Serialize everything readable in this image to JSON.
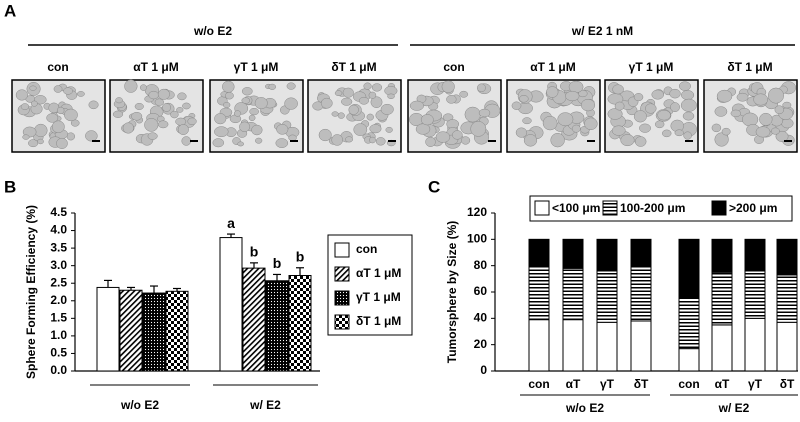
{
  "panel_a": {
    "label": "A",
    "groups": [
      {
        "label": "w/o E2",
        "images": [
          "con",
          "αT 1 μM",
          "γT 1 μM",
          "δT 1 μM"
        ]
      },
      {
        "label": "w/ E2 1 nM",
        "images": [
          "con",
          "αT 1 μM",
          "γT 1 μM",
          "δT 1 μM"
        ]
      }
    ]
  },
  "chart_data": [
    {
      "type": "bar",
      "panel_label": "B",
      "y_label": "Sphere Forming Efficiency (%)",
      "categories": [
        "w/o E2",
        "w/ E2"
      ],
      "series": [
        {
          "name": "con",
          "color": "#ffffff",
          "pattern": "none",
          "values": [
            2.38,
            3.8
          ],
          "errors": [
            0.2,
            0.1
          ],
          "letters": [
            null,
            "a"
          ]
        },
        {
          "name": "αT 1 μM",
          "color": "#ffffff",
          "pattern": "diagonal",
          "values": [
            2.3,
            2.93
          ],
          "errors": [
            0.08,
            0.15
          ],
          "letters": [
            null,
            "b"
          ]
        },
        {
          "name": "γT 1 μM",
          "color": "#000000",
          "pattern": "dots",
          "values": [
            2.22,
            2.57
          ],
          "errors": [
            0.2,
            0.18
          ],
          "letters": [
            null,
            "b"
          ]
        },
        {
          "name": "δT 1 μM",
          "color": "#000000",
          "pattern": "checker",
          "values": [
            2.27,
            2.72
          ],
          "errors": [
            0.08,
            0.22
          ],
          "letters": [
            null,
            "b"
          ]
        }
      ],
      "ylim": [
        0,
        4.5
      ],
      "yticks": [
        {
          "value": 0,
          "label": "0.0"
        },
        0.5,
        {
          "value": 1,
          "label": "1.0"
        },
        1.5,
        {
          "value": 2,
          "label": "2.0"
        },
        2.5,
        {
          "value": 3,
          "label": "3.0"
        },
        3.5,
        {
          "value": 4,
          "label": "4.0"
        },
        4.5
      ],
      "legend": "right"
    },
    {
      "type": "stacked-bar",
      "panel_label": "C",
      "y_label": "Tumorsphere by Size (%)",
      "categories": [
        "con",
        "αT",
        "γT",
        "δT",
        "con",
        "αT",
        "γT",
        "δT"
      ],
      "groups": [
        "w/o E2",
        "w/ E2"
      ],
      "series": [
        {
          "name": "<100 μm",
          "color": "#ffffff",
          "pattern": "none",
          "values": [
            39,
            39,
            37,
            38,
            17,
            35,
            40,
            37
          ]
        },
        {
          "name": "100-200 μm",
          "color": "#ffffff",
          "pattern": "hlines",
          "values": [
            41,
            39,
            39,
            42,
            39,
            40,
            36,
            36
          ]
        },
        {
          "name": ">200 μm",
          "color": "#000000",
          "pattern": "none",
          "values": [
            20,
            22,
            24,
            20,
            44,
            25,
            24,
            27
          ]
        }
      ],
      "ylim": [
        0,
        120
      ],
      "yticks": [
        0,
        20,
        40,
        60,
        80,
        100,
        120
      ],
      "legend": "top"
    }
  ]
}
